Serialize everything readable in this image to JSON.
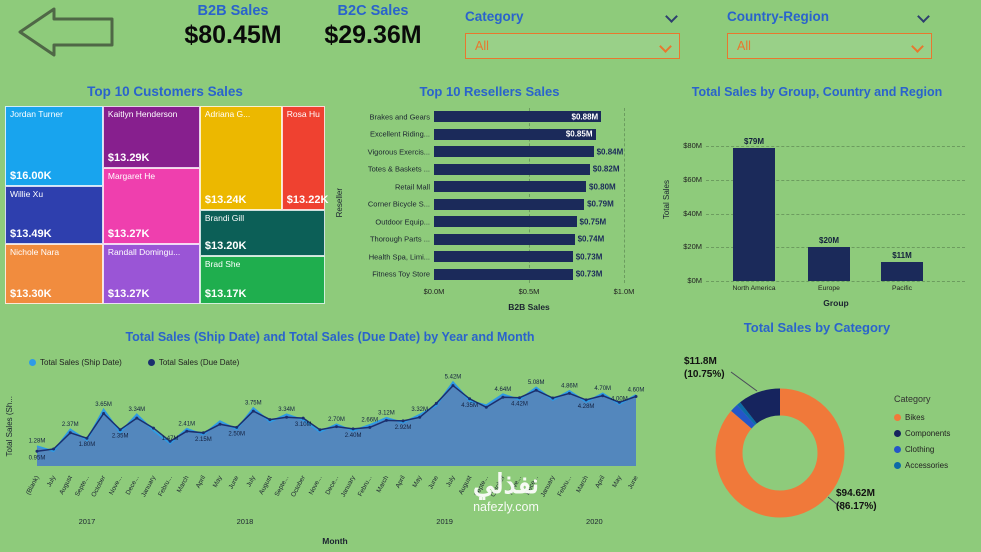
{
  "header": {
    "metrics": [
      {
        "label": "B2B Sales",
        "value": "$80.45M"
      },
      {
        "label": "B2C Sales",
        "value": "$29.36M"
      }
    ],
    "filters": [
      {
        "label": "Category",
        "value": "All"
      },
      {
        "label": "Country-Region",
        "value": "All"
      }
    ]
  },
  "icons": {
    "back": "back-arrow-icon",
    "dropdown": "chevron-down-icon"
  },
  "watermark": {
    "line1": "نفذلي",
    "line2": "nafezly.com"
  },
  "colors": {
    "background": "#8ecb7b",
    "title_blue": "#2a63cc",
    "accent_orange": "#e8772e",
    "bar_navy": "#1b2a5a"
  },
  "chart_data": [
    {
      "id": "top-10-customers-sales",
      "type": "treemap",
      "title": "Top 10 Customers Sales",
      "tiles": [
        {
          "name": "Jordan Turner",
          "value": "$16.00K",
          "color": "#18a4ee",
          "x": 0,
          "y": 0,
          "w": 30.6,
          "h": 40.4
        },
        {
          "name": "Willie Xu",
          "value": "$13.49K",
          "color": "#2e3fae",
          "x": 0,
          "y": 40.4,
          "w": 30.6,
          "h": 29.3
        },
        {
          "name": "Nichole Nara",
          "value": "$13.30K",
          "color": "#f18c3e",
          "x": 0,
          "y": 69.7,
          "w": 30.6,
          "h": 30.3
        },
        {
          "name": "Kaitlyn Henderson",
          "value": "$13.29K",
          "color": "#871f8e",
          "x": 30.6,
          "y": 0,
          "w": 30.3,
          "h": 31.3
        },
        {
          "name": "Margaret He",
          "value": "$13.27K",
          "color": "#ef3fae",
          "x": 30.6,
          "y": 31.3,
          "w": 30.3,
          "h": 38.4
        },
        {
          "name": "Randall Domingu...",
          "value": "$13.27K",
          "color": "#9a55d6",
          "x": 30.6,
          "y": 69.7,
          "w": 30.3,
          "h": 30.3
        },
        {
          "name": "Adriana G...",
          "value": "$13.24K",
          "color": "#ecb800",
          "x": 60.9,
          "y": 0,
          "w": 25.6,
          "h": 52.5
        },
        {
          "name": "Rosa Hu",
          "value": "$13.22K",
          "color": "#ef4130",
          "x": 86.5,
          "y": 0,
          "w": 13.5,
          "h": 52.5
        },
        {
          "name": "Brandi Gill",
          "value": "$13.20K",
          "color": "#0c5f57",
          "x": 60.9,
          "y": 52.5,
          "w": 39.1,
          "h": 23.3
        },
        {
          "name": "Brad She",
          "value": "$13.17K",
          "color": "#1fae4e",
          "x": 60.9,
          "y": 75.8,
          "w": 39.1,
          "h": 24.2
        }
      ]
    },
    {
      "id": "top-10-resellers-sales",
      "type": "bar",
      "orientation": "horizontal",
      "title": "Top 10 Resellers Sales",
      "categories": [
        "Brakes and Gears",
        "Excellent Riding...",
        "Vigorous Exercis...",
        "Totes & Baskets ...",
        "Retail Mall",
        "Corner Bicycle S...",
        "Outdoor Equip...",
        "Thorough Parts ...",
        "Health Spa, Limi...",
        "Fitness Toy Store"
      ],
      "values": [
        0.88,
        0.85,
        0.84,
        0.82,
        0.8,
        0.79,
        0.75,
        0.74,
        0.73,
        0.73
      ],
      "labels": [
        "$0.88M",
        "$0.85M",
        "$0.84M",
        "$0.82M",
        "$0.80M",
        "$0.79M",
        "$0.75M",
        "$0.74M",
        "$0.73M",
        "$0.73M"
      ],
      "label_inside_count": 2,
      "x_ticks": [
        "$0.0M",
        "$0.5M",
        "$1.0M"
      ],
      "xlim": [
        0,
        1.0
      ],
      "xlabel": "B2B Sales",
      "ylabel": "Reseller",
      "bar_color": "#1b2a5a",
      "grid": true
    },
    {
      "id": "total-sales-by-group-country-region",
      "type": "bar",
      "orientation": "vertical",
      "title": "Total Sales by Group, Country and Region",
      "categories": [
        "North America",
        "Europe",
        "Pacific"
      ],
      "values": [
        79,
        20,
        11
      ],
      "labels": [
        "$79M",
        "$20M",
        "$11M"
      ],
      "y_ticks": [
        "$0M",
        "$20M",
        "$40M",
        "$60M",
        "$80M"
      ],
      "ylim": [
        0,
        80
      ],
      "xlabel": "Group",
      "ylabel": "Total Sales",
      "bar_color": "#1b2a5a",
      "grid": true
    },
    {
      "id": "total-sales-ship-due-by-year-month",
      "type": "area",
      "title": "Total Sales (Ship Date) and Total Sales (Due Date) by Year and Month",
      "xlabel": "Month",
      "ylabel": "Total Sales (Sh...",
      "ylim": [
        0,
        5.5
      ],
      "x": [
        "(Blank)",
        "July",
        "August",
        "Septe...",
        "October",
        "Nove...",
        "Dece...",
        "January",
        "Febru...",
        "March",
        "April",
        "May",
        "June",
        "July",
        "August",
        "Septe...",
        "October",
        "Nove...",
        "Dece...",
        "January",
        "Febru...",
        "March",
        "April",
        "May",
        "June",
        "July",
        "August",
        "Septe...",
        "October",
        "Nove...",
        "Dece...",
        "January",
        "Febru...",
        "March",
        "April",
        "May",
        "June"
      ],
      "year_groups": [
        {
          "label": "2017",
          "start": 0,
          "end": 6
        },
        {
          "label": "2018",
          "start": 7,
          "end": 18
        },
        {
          "label": "2019",
          "start": 19,
          "end": 30
        },
        {
          "label": "2020",
          "start": 31,
          "end": 36
        }
      ],
      "series": [
        {
          "name": "Total Sales (Ship Date)",
          "color": "#2e9be6",
          "fill": "#4d80c4",
          "values": [
            1.28,
            0.96,
            2.37,
            1.67,
            3.65,
            2.16,
            3.34,
            2.29,
            1.47,
            2.41,
            2.03,
            2.9,
            2.37,
            3.75,
            2.86,
            3.34,
            2.98,
            2.21,
            2.7,
            2.28,
            2.66,
            3.12,
            2.8,
            3.32,
            3.91,
            5.42,
            4.21,
            3.93,
            4.64,
            4.29,
            5.08,
            4.27,
            4.86,
            4.14,
            4.7,
            4.0,
            4.6
          ]
        },
        {
          "name": "Total Sales (Due Date)",
          "color": "#1b2f6e",
          "values": [
            0.95,
            1.1,
            2.15,
            1.8,
            3.4,
            2.35,
            3.1,
            2.45,
            1.6,
            2.25,
            2.15,
            2.7,
            2.5,
            3.55,
            3.0,
            3.15,
            3.1,
            2.35,
            2.55,
            2.4,
            2.5,
            2.95,
            2.92,
            3.15,
            4.05,
            5.2,
            4.35,
            3.8,
            4.45,
            4.42,
            4.9,
            4.4,
            4.7,
            4.28,
            4.55,
            4.12,
            4.5
          ]
        }
      ],
      "labels_ship": [
        [
          0,
          "1.28M"
        ],
        [
          2,
          "2.37M"
        ],
        [
          4,
          "3.65M"
        ],
        [
          6,
          "3.34M"
        ],
        [
          8,
          "1.47M"
        ],
        [
          9,
          "2.41M"
        ],
        [
          13,
          "3.75M"
        ],
        [
          15,
          "3.34M"
        ],
        [
          18,
          "2.70M"
        ],
        [
          20,
          "2.66M"
        ],
        [
          21,
          "3.12M"
        ],
        [
          23,
          "3.32M"
        ],
        [
          25,
          "5.42M"
        ],
        [
          28,
          "4.64M"
        ],
        [
          30,
          "5.08M"
        ],
        [
          32,
          "4.86M"
        ],
        [
          34,
          "4.70M"
        ],
        [
          35,
          "4.00M"
        ],
        [
          36,
          "4.60M"
        ]
      ],
      "labels_due": [
        [
          0,
          "0.95M"
        ],
        [
          3,
          "1.80M"
        ],
        [
          5,
          "2.35M"
        ],
        [
          10,
          "2.15M"
        ],
        [
          12,
          "2.50M"
        ],
        [
          16,
          "3.10M"
        ],
        [
          19,
          "2.40M"
        ],
        [
          22,
          "2.92M"
        ],
        [
          26,
          "4.35M"
        ],
        [
          29,
          "4.42M"
        ],
        [
          33,
          "4.28M"
        ]
      ],
      "legend_position": "top-left"
    },
    {
      "id": "total-sales-by-category",
      "type": "pie",
      "title": "Total Sales by Category",
      "legend_title": "Category",
      "slices": [
        {
          "name": "Bikes",
          "pct": 86.17,
          "amount": "$94.62M",
          "color": "#f0793a"
        },
        {
          "name": "Clothing",
          "pct": 2.08,
          "color": "#2456c8"
        },
        {
          "name": "Accessories",
          "pct": 1.0,
          "color": "#0c6aa8"
        },
        {
          "name": "Components",
          "pct": 10.75,
          "amount": "$11.8M",
          "color": "#16245e"
        }
      ],
      "legend_order": [
        0,
        3,
        1,
        2
      ],
      "callouts": [
        {
          "line1": "$11.8M",
          "line2": "(10.75%)"
        },
        {
          "line1": "$94.62M",
          "line2": "(86.17%)"
        }
      ]
    }
  ]
}
